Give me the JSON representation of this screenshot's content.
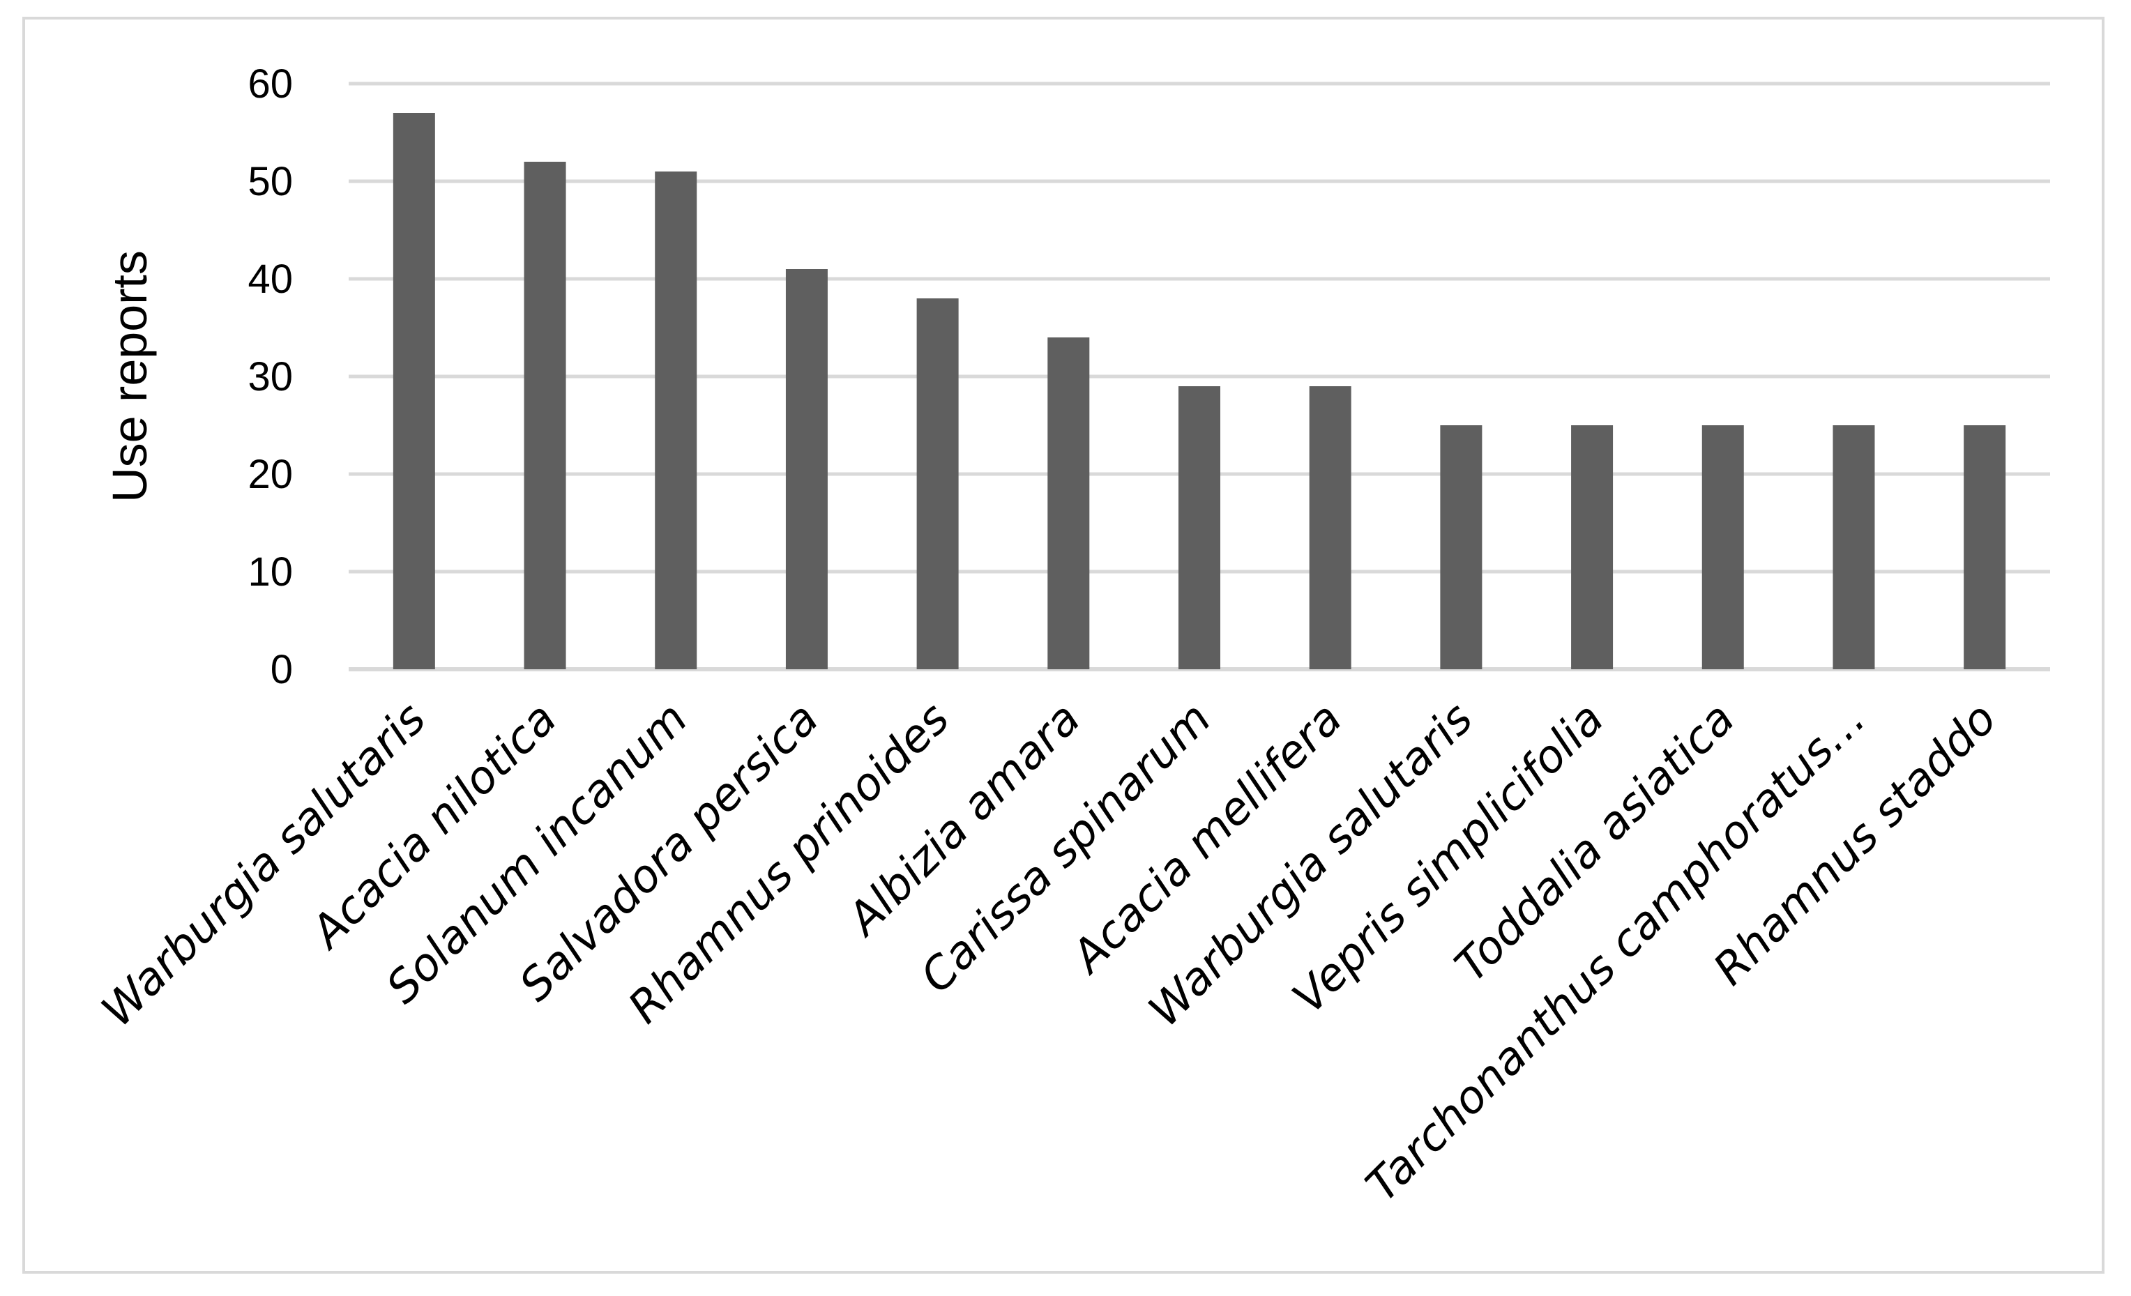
{
  "chart_data": {
    "type": "bar",
    "categories": [
      "Warburgia salutaris",
      "Acacia nilotica",
      "Solanum incanum",
      "Salvadora persica",
      "Rhamnus prinoides",
      "Albizia amara",
      "Carissa spinarum",
      "Acacia mellifera",
      "Warburgia salutaris",
      "Vepris simplicifolia",
      "Toddalia asiatica",
      "Tarchonanthus camphoratus…",
      "Rhamnus staddo"
    ],
    "values": [
      57,
      52,
      51,
      41,
      38,
      34,
      29,
      29,
      25,
      25,
      25,
      25,
      25
    ],
    "title": "",
    "xlabel": "",
    "ylabel": "Use reports",
    "ylim": [
      0,
      60
    ],
    "yticks": [
      0,
      10,
      20,
      30,
      40,
      50,
      60
    ],
    "grid": true,
    "legend": "none",
    "colors": {
      "bar": "#5f5f5f",
      "grid": "#d9d9d9",
      "frame": "#d9d9d9"
    }
  }
}
